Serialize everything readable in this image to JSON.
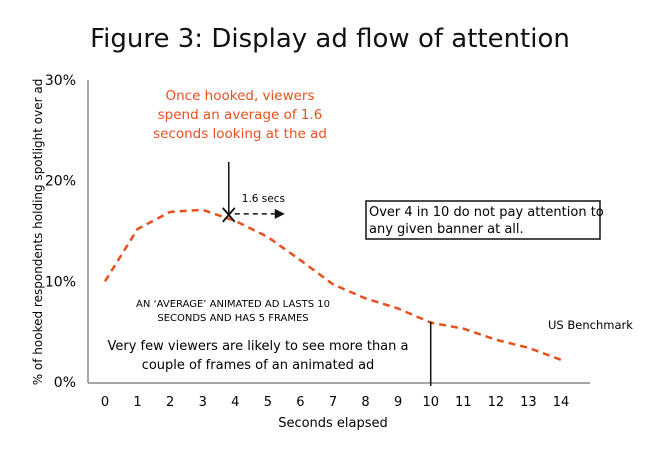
{
  "chart_data": {
    "type": "line",
    "title": "Figure 3: Display ad flow of attention",
    "xlabel": "Seconds elapsed",
    "ylabel": "% of hooked respondents holding spotlight over ad",
    "x": [
      0,
      1,
      2,
      3,
      4,
      5,
      6,
      7,
      8,
      9,
      10,
      11,
      12,
      13,
      14
    ],
    "xticks": [
      "0",
      "1",
      "2",
      "3",
      "4",
      "5",
      "6",
      "7",
      "8",
      "9",
      "10",
      "11",
      "12",
      "13",
      "14"
    ],
    "yticks": [
      {
        "v": 0,
        "label": "0%"
      },
      {
        "v": 10,
        "label": "10%"
      },
      {
        "v": 20,
        "label": "20%"
      },
      {
        "v": 30,
        "label": "30%"
      }
    ],
    "ylim": [
      0,
      30
    ],
    "xlim": [
      0,
      14
    ],
    "grid": false,
    "series": [
      {
        "name": "US Benchmark",
        "color": "#e8501e",
        "values": [
          10,
          15.2,
          16.9,
          17.1,
          16.0,
          14.4,
          12.1,
          9.7,
          8.3,
          7.3,
          5.9,
          5.3,
          4.2,
          3.4,
          2.2
        ]
      }
    ],
    "marker": {
      "x": 3.8,
      "y": 16.6,
      "label": "1.6 secs"
    },
    "vline_x": 10,
    "annotations": {
      "hooked": [
        "Once hooked, viewers",
        "spend an average of 1.6",
        "seconds looking at the ad"
      ],
      "box": [
        "Over 4 in 10 do not pay attention to",
        "any given banner at all."
      ],
      "average": [
        "AN ‘AVERAGE’ ANIMATED AD LASTS 10",
        "SECONDS AND HAS 5 FRAMES"
      ],
      "few": [
        "Very few viewers are likely to see more than a",
        "couple of frames of an animated ad"
      ],
      "series_label": "US Benchmark"
    },
    "accent": "#e8501e"
  }
}
